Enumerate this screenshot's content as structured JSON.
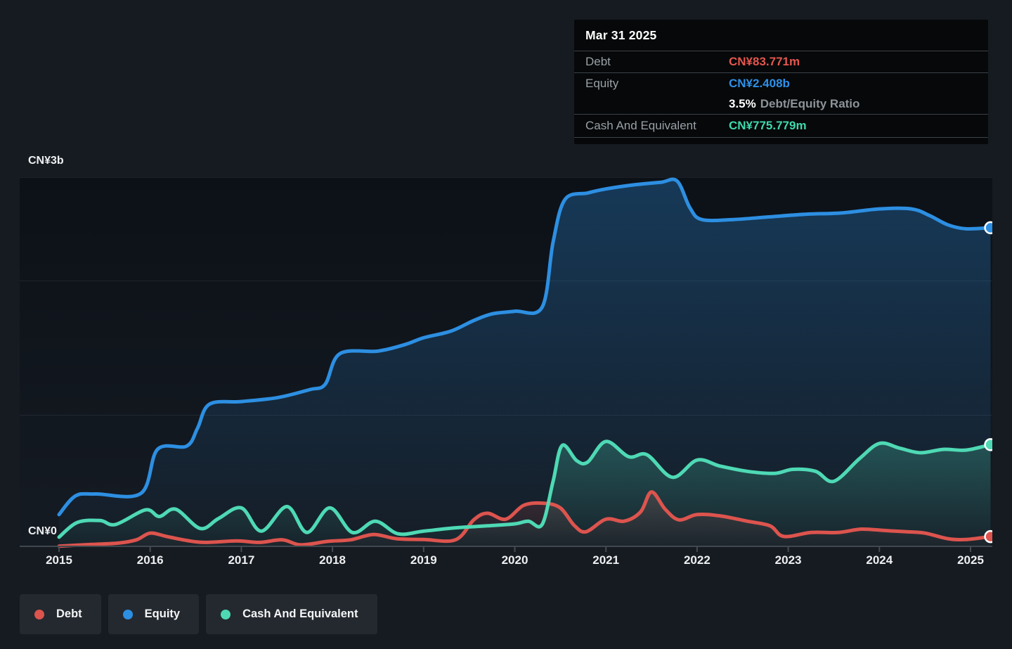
{
  "tooltip": {
    "date": "Mar 31 2025",
    "rows": {
      "debt": {
        "label": "Debt",
        "value": "CN¥83.771m"
      },
      "equity": {
        "label": "Equity",
        "value": "CN¥2.408b"
      },
      "ratio": {
        "value": "3.5%",
        "label": "Debt/Equity Ratio"
      },
      "cash": {
        "label": "Cash And Equivalent",
        "value": "CN¥775.779m"
      }
    }
  },
  "axis": {
    "y_top_label": "CN¥3b",
    "y_zero_label": "CN¥0"
  },
  "legend": {
    "items": [
      {
        "label": "Debt",
        "color": "#dd544e"
      },
      {
        "label": "Equity",
        "color": "#2d8fe2"
      },
      {
        "label": "Cash And Equivalent",
        "color": "#4ed9b4"
      }
    ]
  },
  "colors": {
    "page_bg": "#161b21",
    "tooltip_bg": "#060809",
    "debt_value_text": "#e4564e",
    "equity_value_text": "#2e90e8",
    "cash_value_text": "#3ed9ad",
    "muted_label": "#9aa0a6"
  },
  "chart_data": {
    "type": "area",
    "title": "",
    "unit": "CN¥ billions",
    "ylim": [
      0,
      3
    ],
    "x_ticks": [
      2015,
      2016,
      2017,
      2018,
      2019,
      2020,
      2021,
      2022,
      2023,
      2024,
      2025
    ],
    "y_axis_labels": [
      {
        "label": "CN¥3b",
        "value": 3
      },
      {
        "label": "CN¥0",
        "value": 0
      }
    ],
    "grid": true,
    "legend_position": "bottom-left",
    "last_point": {
      "date": "Mar 31 2025",
      "debt": 0.083771,
      "equity": 2.408,
      "cash": 0.775779,
      "debt_equity_ratio_pct": 3.5
    },
    "series": [
      {
        "id": "equity",
        "name": "Equity",
        "color": "#2d8fe2",
        "points": [
          [
            2015,
            0.25
          ],
          [
            2015.18,
            0.39
          ],
          [
            2015.4,
            0.405
          ],
          [
            2015.9,
            0.41
          ],
          [
            2016.08,
            0.74
          ],
          [
            2016.4,
            0.765
          ],
          [
            2016.52,
            0.9
          ],
          [
            2016.65,
            1.08
          ],
          [
            2017,
            1.1
          ],
          [
            2017.4,
            1.13
          ],
          [
            2017.75,
            1.19
          ],
          [
            2017.92,
            1.23
          ],
          [
            2018.08,
            1.46
          ],
          [
            2018.5,
            1.48
          ],
          [
            2018.8,
            1.53
          ],
          [
            2019,
            1.58
          ],
          [
            2019.3,
            1.63
          ],
          [
            2019.55,
            1.71
          ],
          [
            2019.75,
            1.76
          ],
          [
            2020,
            1.78
          ],
          [
            2020.3,
            1.81
          ],
          [
            2020.42,
            2.3
          ],
          [
            2020.55,
            2.62
          ],
          [
            2020.8,
            2.67
          ],
          [
            2021,
            2.7
          ],
          [
            2021.3,
            2.73
          ],
          [
            2021.6,
            2.75
          ],
          [
            2021.78,
            2.76
          ],
          [
            2021.92,
            2.56
          ],
          [
            2022.05,
            2.47
          ],
          [
            2022.4,
            2.47
          ],
          [
            2022.8,
            2.49
          ],
          [
            2023.2,
            2.51
          ],
          [
            2023.6,
            2.52
          ],
          [
            2024,
            2.55
          ],
          [
            2024.35,
            2.55
          ],
          [
            2024.55,
            2.5
          ],
          [
            2024.75,
            2.43
          ],
          [
            2024.95,
            2.4
          ],
          [
            2025.22,
            2.408
          ]
        ]
      },
      {
        "id": "debt",
        "name": "Debt",
        "color": "#dd544e",
        "points": [
          [
            2015,
            0.012
          ],
          [
            2015.35,
            0.025
          ],
          [
            2015.65,
            0.035
          ],
          [
            2015.85,
            0.06
          ],
          [
            2016,
            0.11
          ],
          [
            2016.18,
            0.085
          ],
          [
            2016.4,
            0.055
          ],
          [
            2016.6,
            0.04
          ],
          [
            2016.95,
            0.052
          ],
          [
            2017.2,
            0.04
          ],
          [
            2017.45,
            0.06
          ],
          [
            2017.65,
            0.022
          ],
          [
            2017.95,
            0.048
          ],
          [
            2018.2,
            0.06
          ],
          [
            2018.45,
            0.1
          ],
          [
            2018.7,
            0.068
          ],
          [
            2019,
            0.062
          ],
          [
            2019.35,
            0.06
          ],
          [
            2019.55,
            0.21
          ],
          [
            2019.7,
            0.26
          ],
          [
            2019.9,
            0.215
          ],
          [
            2020.1,
            0.32
          ],
          [
            2020.32,
            0.335
          ],
          [
            2020.5,
            0.3
          ],
          [
            2020.65,
            0.17
          ],
          [
            2020.78,
            0.12
          ],
          [
            2021,
            0.215
          ],
          [
            2021.2,
            0.2
          ],
          [
            2021.38,
            0.27
          ],
          [
            2021.5,
            0.42
          ],
          [
            2021.65,
            0.29
          ],
          [
            2021.8,
            0.21
          ],
          [
            2022,
            0.25
          ],
          [
            2022.25,
            0.24
          ],
          [
            2022.55,
            0.2
          ],
          [
            2022.8,
            0.165
          ],
          [
            2022.95,
            0.085
          ],
          [
            2023.25,
            0.115
          ],
          [
            2023.55,
            0.115
          ],
          [
            2023.8,
            0.14
          ],
          [
            2024.05,
            0.13
          ],
          [
            2024.3,
            0.12
          ],
          [
            2024.5,
            0.11
          ],
          [
            2024.75,
            0.068
          ],
          [
            2024.95,
            0.062
          ],
          [
            2025.22,
            0.0838
          ]
        ]
      },
      {
        "id": "cash",
        "name": "Cash And Equivalent",
        "color": "#4ed9b4",
        "points": [
          [
            2015,
            0.08
          ],
          [
            2015.2,
            0.19
          ],
          [
            2015.45,
            0.205
          ],
          [
            2015.62,
            0.175
          ],
          [
            2015.95,
            0.285
          ],
          [
            2016.1,
            0.235
          ],
          [
            2016.28,
            0.29
          ],
          [
            2016.55,
            0.145
          ],
          [
            2016.75,
            0.22
          ],
          [
            2017,
            0.3
          ],
          [
            2017.22,
            0.125
          ],
          [
            2017.5,
            0.31
          ],
          [
            2017.72,
            0.115
          ],
          [
            2017.97,
            0.3
          ],
          [
            2018.22,
            0.115
          ],
          [
            2018.47,
            0.2
          ],
          [
            2018.72,
            0.105
          ],
          [
            2019,
            0.125
          ],
          [
            2019.35,
            0.15
          ],
          [
            2019.7,
            0.165
          ],
          [
            2020,
            0.18
          ],
          [
            2020.15,
            0.2
          ],
          [
            2020.3,
            0.175
          ],
          [
            2020.42,
            0.5
          ],
          [
            2020.52,
            0.77
          ],
          [
            2020.68,
            0.655
          ],
          [
            2020.8,
            0.645
          ],
          [
            2021,
            0.8
          ],
          [
            2021.25,
            0.685
          ],
          [
            2021.45,
            0.7
          ],
          [
            2021.73,
            0.53
          ],
          [
            2022,
            0.66
          ],
          [
            2022.25,
            0.615
          ],
          [
            2022.55,
            0.575
          ],
          [
            2022.85,
            0.56
          ],
          [
            2023.05,
            0.59
          ],
          [
            2023.3,
            0.575
          ],
          [
            2023.5,
            0.5
          ],
          [
            2023.78,
            0.67
          ],
          [
            2024,
            0.785
          ],
          [
            2024.22,
            0.75
          ],
          [
            2024.45,
            0.715
          ],
          [
            2024.7,
            0.74
          ],
          [
            2024.95,
            0.735
          ],
          [
            2025.22,
            0.776
          ]
        ]
      }
    ]
  }
}
